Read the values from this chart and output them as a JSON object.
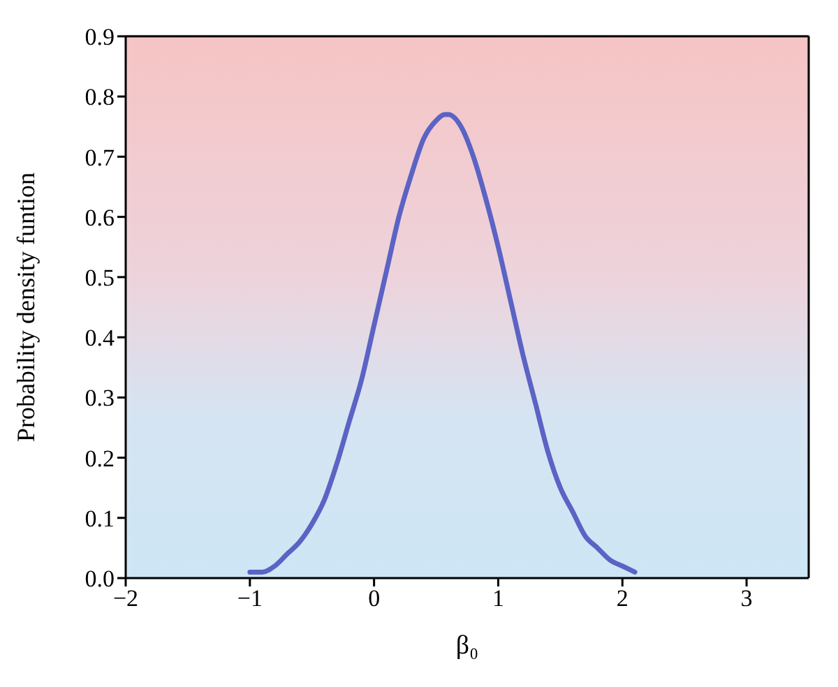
{
  "chart_data": {
    "type": "line",
    "xlabel": "β₀",
    "ylabel": "Probability density funtion",
    "x": [
      -1,
      -0.9,
      -0.8,
      -0.7,
      -0.6,
      -0.5,
      -0.4,
      -0.3,
      -0.2,
      -0.1,
      0,
      0.1,
      0.2,
      0.3,
      0.4,
      0.5,
      0.57,
      0.6,
      0.7,
      0.8,
      0.9,
      1.0,
      1.1,
      1.2,
      1.3,
      1.4,
      1.5,
      1.6,
      1.7,
      1.8,
      1.9,
      2.0,
      2.1
    ],
    "series": [
      {
        "color": "#5b63c4",
        "values": [
          0.01,
          0.01,
          0.02,
          0.04,
          0.06,
          0.09,
          0.13,
          0.19,
          0.26,
          0.33,
          0.42,
          0.51,
          0.6,
          0.67,
          0.73,
          0.76,
          0.77,
          0.77,
          0.75,
          0.7,
          0.63,
          0.55,
          0.46,
          0.37,
          0.29,
          0.21,
          0.15,
          0.11,
          0.07,
          0.05,
          0.03,
          0.02,
          0.01
        ]
      }
    ],
    "xlim": [
      -2,
      3.5
    ],
    "xticks": [
      {
        "value": -2,
        "label": "−2"
      },
      {
        "value": -1,
        "label": "−1"
      },
      0,
      1,
      2,
      3
    ],
    "ylim": [
      0,
      0.9
    ],
    "yticks": [
      {
        "value": 0,
        "label": "0.0"
      },
      0.1,
      0.2,
      0.3,
      0.4,
      0.5,
      0.6,
      0.7,
      0.8,
      0.9
    ],
    "grid": false,
    "legend": false,
    "marker": "none",
    "line_style": "solid"
  }
}
